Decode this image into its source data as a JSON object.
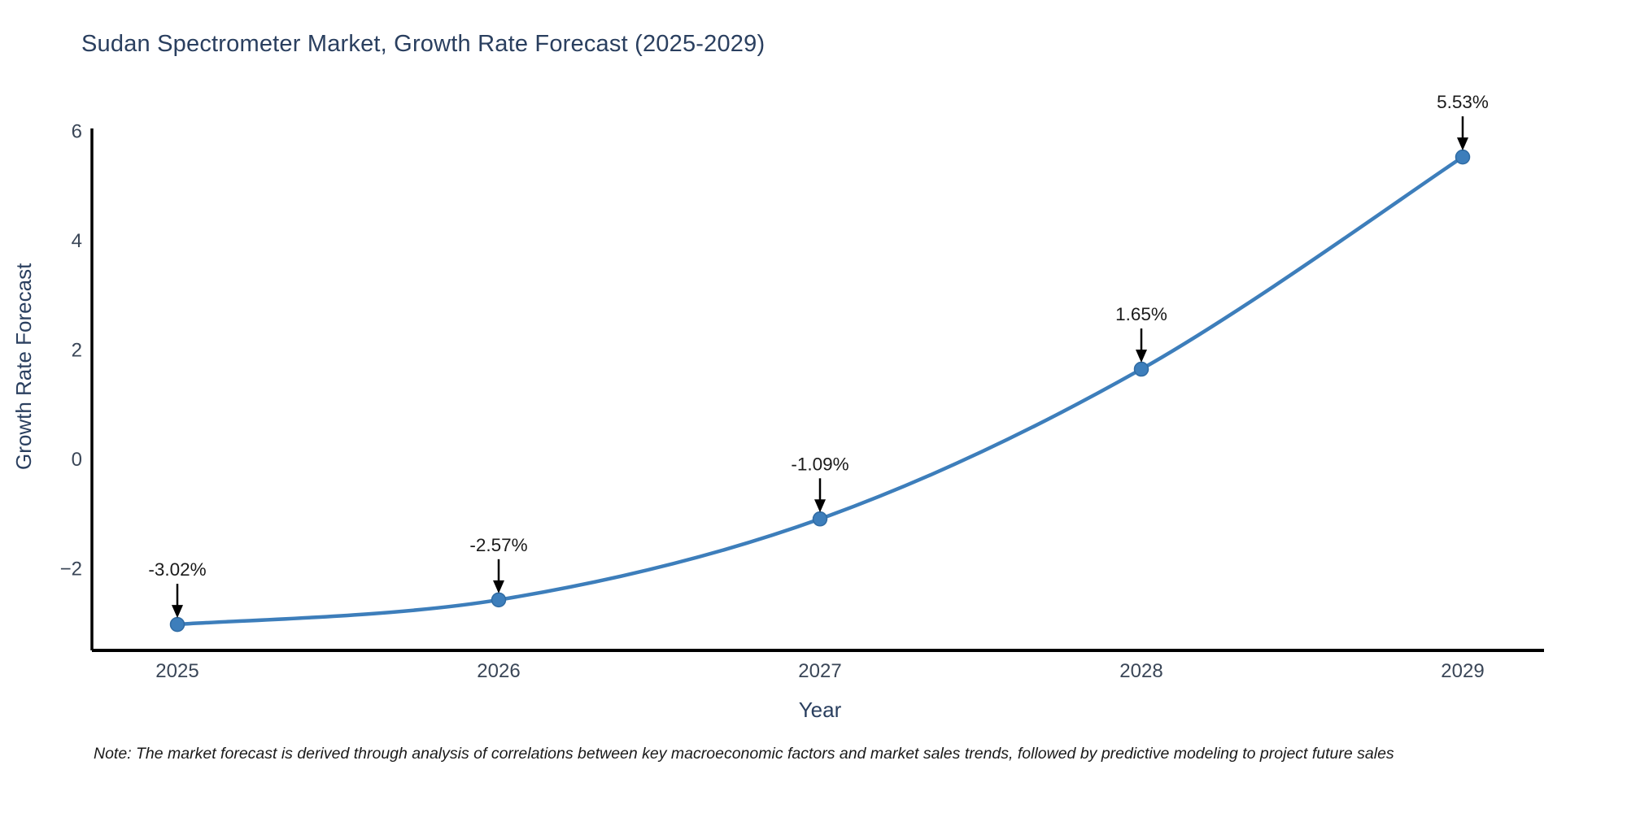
{
  "chart_data": {
    "type": "line",
    "title": "Sudan Spectrometer Market, Growth Rate Forecast (2025-2029)",
    "xlabel": "Year",
    "ylabel": "Growth Rate Forecast",
    "x": [
      "2025",
      "2026",
      "2027",
      "2028",
      "2029"
    ],
    "series": [
      {
        "name": "Growth Rate Forecast",
        "values": [
          -3.02,
          -2.57,
          -1.09,
          1.65,
          5.53
        ]
      }
    ],
    "point_labels": [
      "-3.02%",
      "-2.57%",
      "-1.09%",
      "1.65%",
      "5.53%"
    ],
    "ylim": [
      -3.55,
      6.05
    ],
    "yticks": {
      "values": [
        6,
        4,
        2,
        0,
        -2
      ],
      "labels": [
        "6",
        "4",
        "2",
        "0",
        "−2"
      ]
    },
    "grid": false,
    "legend": "none",
    "colors": {
      "line": "#3d7ebb",
      "marker_fill": "#3d7ebb",
      "marker_edge": "#2f6ba3",
      "annotation_arrow": "#000000",
      "annotation_text": "#1a1a1a",
      "tick_text": "#3a4657",
      "axis_spine": "#000000",
      "title_text": "#2a3f5f"
    },
    "note": "Note: The market forecast is derived through analysis of correlations between key macroeconomic factors and market sales trends, followed by predictive modeling to project future sales"
  }
}
